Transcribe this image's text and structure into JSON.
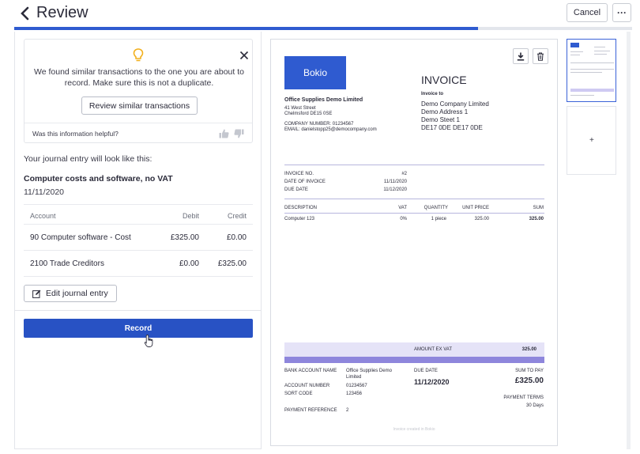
{
  "header": {
    "title": "Review",
    "cancel_label": "Cancel",
    "more_label": "···"
  },
  "progress": {
    "value_percent": 75
  },
  "notice": {
    "message": "We found similar transactions to the one you are about to record. Make sure this is not a duplicate.",
    "review_label": "Review similar transactions",
    "helpful_label": "Was this information helpful?"
  },
  "journal": {
    "intro": "Your journal entry will look like this:",
    "title": "Computer costs and software, no VAT",
    "date": "11/11/2020",
    "columns": {
      "account": "Account",
      "debit": "Debit",
      "credit": "Credit"
    },
    "rows": [
      {
        "account": "90 Computer software - Cost",
        "debit": "£325.00",
        "credit": "£0.00"
      },
      {
        "account": "2100 Trade Creditors",
        "debit": "£0.00",
        "credit": "£325.00"
      }
    ],
    "edit_label": "Edit journal entry",
    "record_label": "Record"
  },
  "invoice": {
    "logo_text": "Bokio",
    "heading": "INVOICE",
    "sender": {
      "name": "Office Supplies Demo Limited",
      "street": "41 West Street",
      "city": "Chelmsford DE15 0SE",
      "company_number": "COMPANY NUMBER: 01234567",
      "email": "EMAIL: danielstopp25@democompany.com"
    },
    "recipient": {
      "label": "Invoice to",
      "name": "Demo Company Limited",
      "address1": "Demo Address 1",
      "address2": "Demo Steet 1",
      "postcode": "DE17 0DE DE17 0DE"
    },
    "meta": {
      "no_label": "INVOICE NO.",
      "no_value": "#2",
      "date_label": "DATE OF INVOICE",
      "date_value": "11/11/2020",
      "due_label": "DUE DATE",
      "due_value": "11/12/2020"
    },
    "items_head": {
      "description": "DESCRIPTION",
      "vat": "VAT",
      "quantity": "QUANTITY",
      "unit_price": "UNIT PRICE",
      "sum": "SUM"
    },
    "item": {
      "description": "Computer 123",
      "vat": "0%",
      "quantity": "1 piece",
      "unit_price": "325.00",
      "sum": "325.00"
    },
    "amount_ex_vat_label": "AMOUNT EX VAT",
    "amount_ex_vat_value": "325.00",
    "bank_label": "BANK ACCOUNT NAME",
    "bank_value_1": "Office Supplies Demo",
    "bank_value_2": "Limited",
    "account_label": "ACCOUNT NUMBER",
    "account_value": "01234567",
    "sort_label": "SORT CODE",
    "sort_value": "123456",
    "ref_label": "PAYMENT REFERENCE",
    "ref_value": "2",
    "due_label": "DUE DATE",
    "due_value": "11/12/2020",
    "pay_label": "SUM TO PAY",
    "pay_value": "£325.00",
    "terms_label": "PAYMENT TERMS",
    "terms_value": "30 Days",
    "footer": "Invoice created in Bokio"
  },
  "thumbnails": {
    "add_label": "+"
  }
}
